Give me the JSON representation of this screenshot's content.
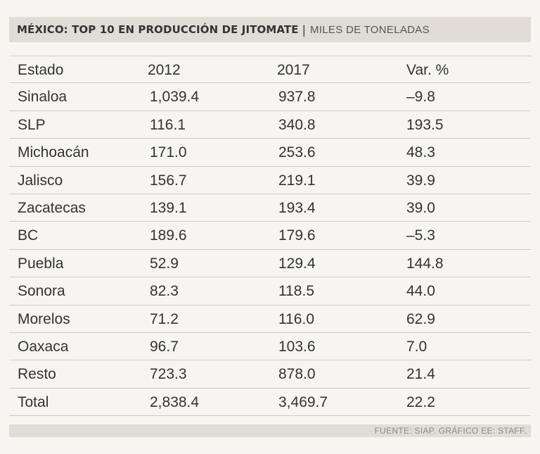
{
  "title": {
    "main": "MÉXICO: TOP 10 EN PRODUCCIÓN DE JITOMATE",
    "separator": "|",
    "subtitle": "MILES DE TONELADAS"
  },
  "table": {
    "headers": [
      "Estado",
      "2012",
      "2017",
      "Var. %"
    ],
    "rows": [
      [
        "Sinaloa",
        "1,039.4",
        "937.8",
        "–9.8"
      ],
      [
        "SLP",
        "116.1",
        "340.8",
        "193.5"
      ],
      [
        "Michoacán",
        "171.0",
        "253.6",
        "48.3"
      ],
      [
        "Jalisco",
        "156.7",
        "219.1",
        "39.9"
      ],
      [
        "Zacatecas",
        "139.1",
        "193.4",
        "39.0"
      ],
      [
        "BC",
        "189.6",
        "179.6",
        "–5.3"
      ],
      [
        "Puebla",
        "52.9",
        "129.4",
        "144.8"
      ],
      [
        "Sonora",
        "82.3",
        "118.5",
        "44.0"
      ],
      [
        "Morelos",
        "71.2",
        "116.0",
        "62.9"
      ],
      [
        "Oaxaca",
        "96.7",
        "103.6",
        "7.0"
      ],
      [
        "Resto",
        "723.3",
        "878.0",
        "21.4"
      ],
      [
        "Total",
        "2,838.4",
        "3,469.7",
        "22.2"
      ]
    ]
  },
  "footer": {
    "source": "FUENTE: SIAP. GRÁFICO EE: STAFF."
  }
}
